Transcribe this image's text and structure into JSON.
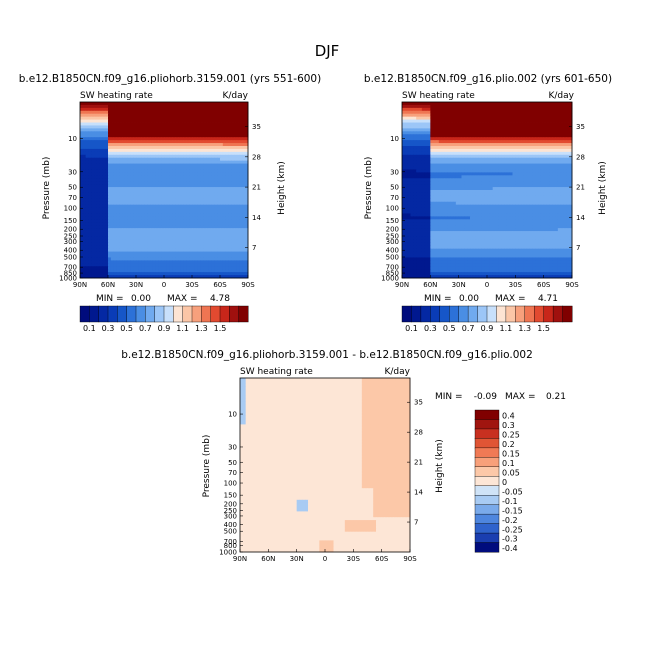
{
  "figure": {
    "title": "DJF"
  },
  "chart_data": [
    {
      "type": "heatmap",
      "id": "top-left",
      "title": "b.e12.B1850CN.f09_g16.pliohorb.3159.001 (yrs 551-600)",
      "left_label": "SW heating rate",
      "right_label": "K/day",
      "xlabel": "",
      "ylabel": "Pressure (mb)",
      "ylabel_right": "Height (km)",
      "x_ticks": [
        "90N",
        "60N",
        "30N",
        "0",
        "30S",
        "60S",
        "90S"
      ],
      "x_values": [
        90,
        60,
        30,
        0,
        -30,
        -60,
        -90
      ],
      "xlim": [
        90,
        -90
      ],
      "y_ticks": [
        "10",
        "30",
        "50",
        "70",
        "100",
        "150",
        "200",
        "250",
        "300",
        "400",
        "500",
        "700",
        "850",
        "1000"
      ],
      "y_values": [
        10,
        30,
        50,
        70,
        100,
        150,
        200,
        250,
        300,
        400,
        500,
        700,
        850,
        1000
      ],
      "ylim": [
        1000,
        3
      ],
      "y_right_ticks": [
        "35",
        "28",
        "21",
        "14",
        "7"
      ],
      "y_right_values": [
        35,
        28,
        21,
        14,
        7
      ],
      "min_text": "MIN =",
      "min": "0.00",
      "max_text": "MAX =",
      "max": "4.78",
      "colorbar_levels": [
        "0.1",
        "0.3",
        "0.5",
        "0.7",
        "0.9",
        "1.1",
        "1.3",
        "1.5"
      ]
    },
    {
      "type": "heatmap",
      "id": "top-right",
      "title": "b.e12.B1850CN.f09_g16.plio.002 (yrs 601-650)",
      "left_label": "SW heating rate",
      "right_label": "K/day",
      "xlabel": "",
      "ylabel": "Pressure (mb)",
      "ylabel_right": "Height (km)",
      "x_ticks": [
        "90N",
        "60N",
        "30N",
        "0",
        "30S",
        "60S",
        "90S"
      ],
      "x_values": [
        90,
        60,
        30,
        0,
        -30,
        -60,
        -90
      ],
      "xlim": [
        90,
        -90
      ],
      "y_ticks": [
        "10",
        "30",
        "50",
        "70",
        "100",
        "150",
        "200",
        "250",
        "300",
        "400",
        "500",
        "700",
        "850",
        "1000"
      ],
      "y_values": [
        10,
        30,
        50,
        70,
        100,
        150,
        200,
        250,
        300,
        400,
        500,
        700,
        850,
        1000
      ],
      "ylim": [
        1000,
        3
      ],
      "y_right_ticks": [
        "35",
        "28",
        "21",
        "14",
        "7"
      ],
      "y_right_values": [
        35,
        28,
        21,
        14,
        7
      ],
      "min_text": "MIN =",
      "min": "0.00",
      "max_text": "MAX =",
      "max": "4.71",
      "colorbar_levels": [
        "0.1",
        "0.3",
        "0.5",
        "0.7",
        "0.9",
        "1.1",
        "1.3",
        "1.5"
      ]
    },
    {
      "type": "heatmap",
      "id": "difference",
      "title": "b.e12.B1850CN.f09_g16.pliohorb.3159.001 - b.e12.B1850CN.f09_g16.plio.002",
      "left_label": "SW heating rate",
      "right_label": "K/day",
      "xlabel": "",
      "ylabel": "Pressure (mb)",
      "ylabel_right": "Height (km)",
      "x_ticks": [
        "90N",
        "60N",
        "30N",
        "0",
        "30S",
        "60S",
        "90S"
      ],
      "x_values": [
        90,
        60,
        30,
        0,
        -30,
        -60,
        -90
      ],
      "xlim": [
        90,
        -90
      ],
      "y_ticks": [
        "10",
        "30",
        "50",
        "70",
        "100",
        "150",
        "200",
        "250",
        "300",
        "400",
        "500",
        "700",
        "800",
        "1000"
      ],
      "y_values": [
        10,
        30,
        50,
        70,
        100,
        150,
        200,
        250,
        300,
        400,
        500,
        700,
        800,
        1000
      ],
      "ylim": [
        1000,
        3
      ],
      "y_right_ticks": [
        "35",
        "28",
        "21",
        "14",
        "7"
      ],
      "y_right_values": [
        35,
        28,
        21,
        14,
        7
      ],
      "min_text": "MIN =",
      "min": "-0.09",
      "max_text": "MAX =",
      "max": "0.21",
      "colorbar_levels": [
        "0.4",
        "0.3",
        "0.25",
        "0.2",
        "0.15",
        "0.1",
        "0.05",
        "0",
        "-0.05",
        "-0.1",
        "-0.15",
        "-0.2",
        "-0.25",
        "-0.3",
        "-0.4"
      ]
    }
  ],
  "colors": {
    "top_palette": [
      "#000c7d",
      "#00188f",
      "#0428a3",
      "#0a3cb7",
      "#1656c8",
      "#2c71d8",
      "#4a8ee4",
      "#70aaef",
      "#9cc6f7",
      "#c8e0fb",
      "#fde4d3",
      "#fbc6a7",
      "#f7a07c",
      "#ef7552",
      "#e24a30",
      "#c8261a",
      "#a0100e",
      "#800000"
    ],
    "diff_palette": [
      "#800000",
      "#a0150f",
      "#c83020",
      "#e05535",
      "#f07a55",
      "#f8a07a",
      "#fcc8a8",
      "#fde6d6",
      "#cfe3f7",
      "#a8cbf3",
      "#7aaaea",
      "#4e86de",
      "#2f63cc",
      "#1a3eb0",
      "#000c7d"
    ],
    "diff_background": "#cfe3f7",
    "diff_positive": "#fde6d6"
  }
}
